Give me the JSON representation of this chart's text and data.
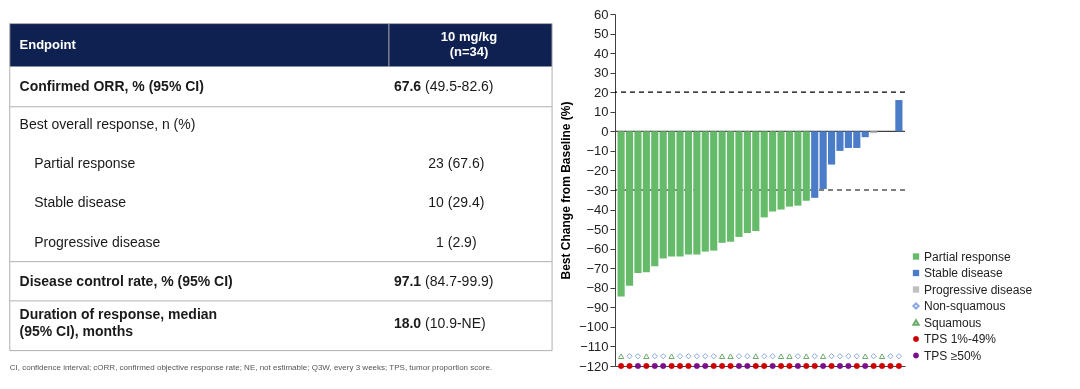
{
  "chart_data": [
    {
      "type": "other",
      "color": "#0e2150",
      "annotations": [
        "Endpoint",
        "10 mg/kg",
        "(n=34)",
        "Confirmed ORR, % (95% CI)",
        "67.6",
        "(49.5-82.6)",
        "Best overall response, n (%)",
        "Partial response",
        "23 (67.6)",
        "Stable disease",
        "10 (29.4)",
        "Progressive disease",
        "1 (2.9)",
        "Disease control rate, % (95% CI)",
        "97.1",
        "(84.7-99.9)",
        "Duration of response, median",
        "(95% CI), months",
        "18.0",
        "(10.9-NE)",
        "CI, confidence interval; cORR, confirmed objective response rate; NE, not estimable; Q3W, every 3 weeks; TPS, tumor proportion score."
      ]
    },
    {
      "type": "bar",
      "ylabel": "Best Change from Baseline (%)",
      "categories": [
        null,
        null,
        null,
        null,
        null,
        null,
        null,
        null,
        null,
        null,
        null,
        null,
        null,
        null,
        null,
        null,
        null,
        null,
        null,
        null,
        null,
        null,
        null,
        null,
        null,
        null,
        null,
        null,
        null,
        null,
        null,
        null,
        null,
        null
      ],
      "ylim": [
        -120,
        60
      ],
      "yticks": [
        {
          "value": -120,
          "label": "−120"
        },
        {
          "value": -110,
          "label": "−110"
        },
        {
          "value": -100,
          "label": "−100"
        },
        {
          "value": -90,
          "label": "−90"
        },
        {
          "value": -80,
          "label": "−80"
        },
        {
          "value": -70,
          "label": "−70"
        },
        {
          "value": -60,
          "label": "−60"
        },
        {
          "value": -50,
          "label": "−50"
        },
        {
          "value": -40,
          "label": "−40"
        },
        {
          "value": -30,
          "label": "−30"
        },
        {
          "value": -20,
          "label": "−20"
        },
        {
          "value": -10,
          "label": "−10"
        },
        0,
        10,
        20,
        30,
        40,
        50,
        60
      ],
      "tick_labels": "y",
      "grid": false,
      "legend": "right",
      "ref_lines": [
        {
          "axis": "y",
          "value": 20,
          "line_style": "dashed",
          "color": "#000000"
        },
        {
          "axis": "y",
          "value": -30,
          "line_style": "dashed",
          "color": "#000000"
        },
        {
          "axis": "y",
          "value": 0,
          "line_style": "solid",
          "color": "#404040"
        }
      ],
      "series": [
        {
          "name": "Partial response",
          "type": "bar",
          "color": "#66bb6a",
          "values": [
            -84.5,
            -79,
            -72.5,
            -72,
            -69,
            -65,
            -64,
            -64,
            -63,
            -63,
            -61.5,
            -61,
            -57,
            -56.5,
            -54,
            -52,
            -51,
            -44,
            -41,
            -40,
            -38.5,
            -38,
            -35.5,
            null,
            null,
            null,
            null,
            null,
            null,
            null,
            null,
            null,
            null,
            null
          ]
        },
        {
          "name": "Stable disease",
          "type": "bar",
          "color": "#4a7cc8",
          "values": [
            null,
            null,
            null,
            null,
            null,
            null,
            null,
            null,
            null,
            null,
            null,
            null,
            null,
            null,
            null,
            null,
            null,
            null,
            null,
            null,
            null,
            null,
            null,
            -34,
            -29.5,
            -17,
            -10,
            -8.5,
            -8.5,
            -3,
            null,
            0,
            0,
            16
          ]
        },
        {
          "name": "Progressive disease",
          "type": "bar",
          "color": "#bfbfbf",
          "values": [
            null,
            null,
            null,
            null,
            null,
            null,
            null,
            null,
            null,
            null,
            null,
            null,
            null,
            null,
            null,
            null,
            null,
            null,
            null,
            null,
            null,
            null,
            null,
            null,
            null,
            null,
            null,
            null,
            null,
            null,
            -1,
            null,
            null,
            null
          ]
        },
        {
          "name": "Non-squamous",
          "type": "scatter",
          "marker": "diamond",
          "color": "#8aa8e0",
          "values": [
            null,
            -115,
            -115,
            null,
            -115,
            -115,
            null,
            -115,
            -115,
            -115,
            -115,
            -115,
            null,
            null,
            -115,
            -115,
            null,
            -115,
            -115,
            null,
            null,
            -115,
            null,
            -115,
            null,
            -115,
            -115,
            -115,
            -115,
            null,
            -115,
            null,
            -115,
            -115
          ]
        },
        {
          "name": "Squamous",
          "type": "scatter",
          "marker": "triangle",
          "color": "#6bab6b",
          "values": [
            -115,
            null,
            null,
            -115,
            null,
            null,
            -115,
            null,
            null,
            null,
            null,
            null,
            -115,
            -115,
            null,
            null,
            -115,
            null,
            null,
            -115,
            -115,
            null,
            -115,
            null,
            -115,
            null,
            null,
            null,
            null,
            -115,
            null,
            -115,
            null,
            null
          ]
        },
        {
          "name": "TPS 1%-49%",
          "type": "scatter",
          "marker": "circle",
          "color": "#cc0000",
          "values": [
            -120,
            -120,
            null,
            -120,
            null,
            null,
            -120,
            -120,
            -120,
            null,
            null,
            -120,
            -120,
            -120,
            null,
            null,
            -120,
            -120,
            null,
            -120,
            -120,
            null,
            -120,
            -120,
            null,
            -120,
            null,
            null,
            -120,
            null,
            -120,
            -120,
            -120,
            -120
          ]
        },
        {
          "name": "TPS ≥50%",
          "type": "scatter",
          "marker": "circle",
          "color": "#7b0f8a",
          "values": [
            null,
            null,
            -120,
            null,
            -120,
            -120,
            null,
            null,
            null,
            -120,
            -120,
            null,
            null,
            null,
            -120,
            -120,
            null,
            null,
            -120,
            null,
            null,
            -120,
            null,
            null,
            -120,
            null,
            -120,
            -120,
            null,
            -120,
            null,
            null,
            null,
            null
          ]
        }
      ]
    }
  ]
}
